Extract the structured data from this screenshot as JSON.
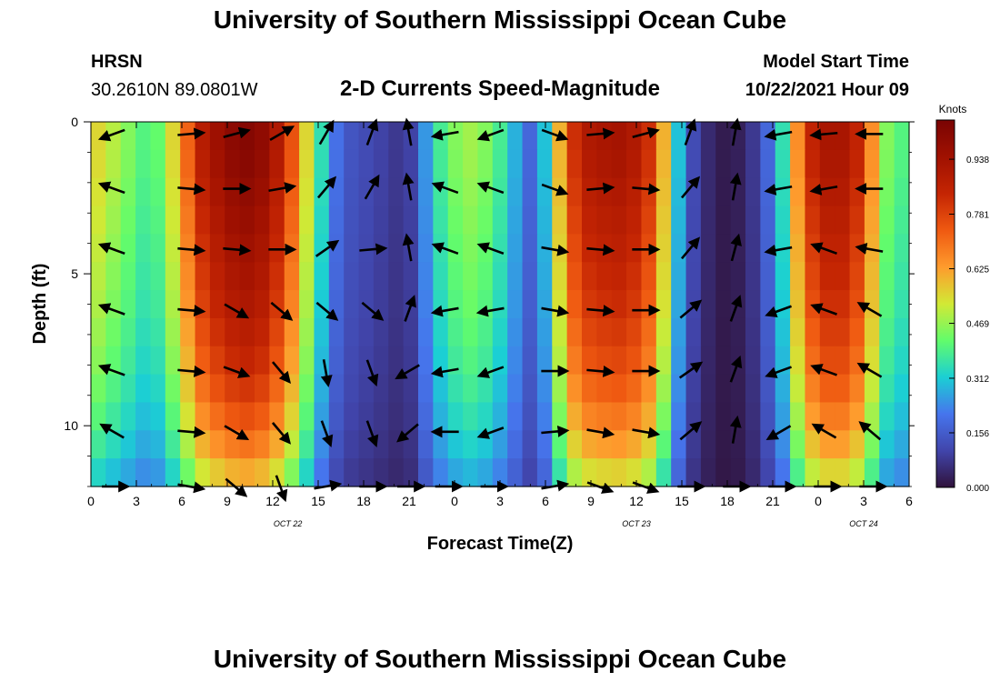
{
  "header": {
    "title": "University of Southern Mississippi Ocean Cube",
    "station": "HRSN",
    "coords": "30.2610N  89.0801W",
    "subtitle": "2-D Currents Speed-Magnitude",
    "model_start_label": "Model Start Time",
    "model_start_value": "10/22/2021 Hour 09"
  },
  "footer": {
    "title": "University of Southern Mississippi Ocean Cube"
  },
  "chart_data": {
    "type": "heatmap",
    "title": "2-D Currents Speed-Magnitude",
    "xlabel": "Forecast Time(Z)",
    "ylabel": "Depth (ft)",
    "x_ticks": [
      "0",
      "3",
      "6",
      "9",
      "12",
      "15",
      "18",
      "21",
      "0",
      "3",
      "6",
      "9",
      "12",
      "15",
      "18",
      "21",
      "0",
      "3",
      "6"
    ],
    "x_range_hours": [
      0,
      54
    ],
    "date_labels": [
      {
        "text": "OCT 22",
        "hour": 13
      },
      {
        "text": "OCT 23",
        "hour": 36
      },
      {
        "text": "OCT 24",
        "hour": 51
      }
    ],
    "y_ticks": [
      {
        "label": "0",
        "value": 0
      },
      {
        "label": "5",
        "value": 5
      },
      {
        "label": "10",
        "value": 10
      }
    ],
    "y_range_ft": [
      0,
      12
    ],
    "colorbar": {
      "label": "Knots",
      "ticks": [
        "0.938",
        "0.781",
        "0.625",
        "0.469",
        "0.312",
        "0.156",
        "0.000"
      ],
      "range": [
        0,
        1.05
      ]
    },
    "speed_profile": {
      "hours": [
        0,
        1,
        2,
        3,
        4,
        5,
        6,
        7,
        8,
        9,
        10,
        11,
        12,
        13,
        14,
        15,
        16,
        17,
        18,
        19,
        20,
        21,
        22,
        23,
        24,
        25,
        26,
        27,
        28,
        29,
        30,
        31,
        32,
        33,
        34,
        35,
        36,
        37,
        38,
        39,
        40,
        41,
        42,
        43,
        44,
        45,
        46,
        47,
        48,
        49,
        50,
        51,
        52,
        53,
        54
      ],
      "surface_knots": [
        0.55,
        0.5,
        0.45,
        0.4,
        0.42,
        0.55,
        0.72,
        0.88,
        0.95,
        1.0,
        1.02,
        0.99,
        0.9,
        0.75,
        0.55,
        0.35,
        0.2,
        0.14,
        0.12,
        0.1,
        0.08,
        0.1,
        0.25,
        0.38,
        0.45,
        0.48,
        0.45,
        0.38,
        0.28,
        0.18,
        0.3,
        0.6,
        0.82,
        0.9,
        0.92,
        0.93,
        0.9,
        0.82,
        0.6,
        0.3,
        0.12,
        0.05,
        0.02,
        0.03,
        0.08,
        0.18,
        0.35,
        0.65,
        0.85,
        0.92,
        0.92,
        0.85,
        0.65,
        0.45,
        0.4
      ],
      "depth_decay": [
        1.0,
        0.99,
        0.97,
        0.95,
        0.93,
        0.91,
        0.89,
        0.86,
        0.83,
        0.79,
        0.74,
        0.68,
        0.6
      ]
    },
    "vector_rows_ft": [
      0.4,
      2.2,
      4.2,
      6.2,
      8.2,
      10.2,
      12.0
    ],
    "vector_cols_hours": [
      1.5,
      6.5,
      9.5,
      12.5,
      15.5,
      18.5,
      21.0,
      23.5,
      26.5,
      30.5,
      33.5,
      36.5,
      39.5,
      42.5,
      45.5,
      48.5,
      51.5
    ],
    "vector_angles_deg": [
      [
        200,
        5,
        15,
        30,
        60,
        70,
        100,
        190,
        200,
        340,
        5,
        15,
        70,
        80,
        190,
        185,
        180
      ],
      [
        160,
        355,
        0,
        10,
        50,
        60,
        100,
        160,
        160,
        340,
        5,
        355,
        50,
        80,
        190,
        190,
        180
      ],
      [
        160,
        355,
        355,
        0,
        35,
        5,
        100,
        160,
        160,
        350,
        355,
        0,
        50,
        75,
        190,
        160,
        170
      ],
      [
        160,
        355,
        330,
        320,
        320,
        320,
        70,
        190,
        190,
        350,
        355,
        0,
        40,
        70,
        200,
        160,
        150
      ],
      [
        160,
        355,
        340,
        310,
        280,
        290,
        210,
        190,
        200,
        0,
        355,
        0,
        35,
        70,
        200,
        160,
        150
      ],
      [
        150,
        355,
        330,
        310,
        290,
        290,
        220,
        180,
        200,
        5,
        350,
        350,
        40,
        80,
        210,
        150,
        140
      ],
      [
        0,
        350,
        320,
        290,
        10,
        0,
        0,
        0,
        0,
        10,
        340,
        340,
        0,
        0,
        0,
        0,
        0
      ]
    ]
  }
}
